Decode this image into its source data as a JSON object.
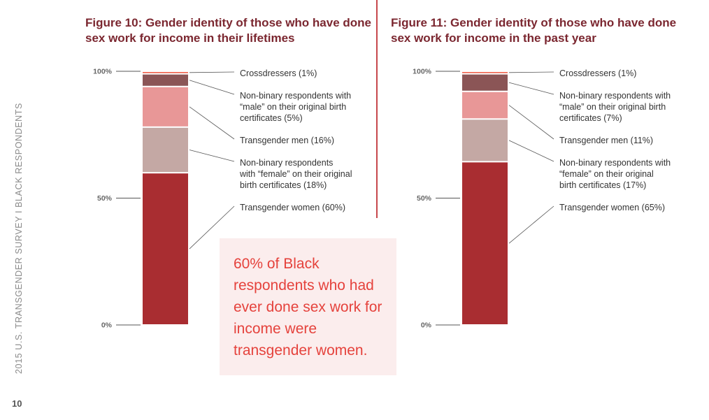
{
  "sidebar_text": "2015 U.S. TRANSGENDER SURVEY I BLACK RESPONDENTS",
  "page_number": "10",
  "callout": "60% of Black respondents who had ever done sex work for income were transgender women.",
  "chart_data": [
    {
      "type": "bar",
      "stacked": true,
      "title": "Figure 10: Gender identity of those who have done sex work for income in their lifetimes",
      "yticks": [
        "0%",
        "50%",
        "100%"
      ],
      "ylim": [
        0,
        100
      ],
      "series": [
        {
          "name": "Transgender women (60%)",
          "value": 60,
          "color": "#a92d31"
        },
        {
          "name": "Non-binary respondents with “female” on their original birth certificates (18%)",
          "value": 18,
          "color": "#c4a8a4"
        },
        {
          "name": "Transgender men (16%)",
          "value": 16,
          "color": "#e89797"
        },
        {
          "name": "Non-binary respondents with “male” on their original birth certificates (5%)",
          "value": 5,
          "color": "#8b5556"
        },
        {
          "name": "Crossdressers (1%)",
          "value": 1,
          "color": "#f0604a"
        }
      ],
      "label_lines": [
        [
          "Transgender women (60%)"
        ],
        [
          "Non-binary respondents",
          "with “female” on their original",
          "birth certificates (18%)"
        ],
        [
          "Transgender men (16%)"
        ],
        [
          "Non-binary respondents with",
          "“male” on their original birth",
          "certificates (5%)"
        ],
        [
          "Crossdressers (1%)"
        ]
      ]
    },
    {
      "type": "bar",
      "stacked": true,
      "title": "Figure 11: Gender identity of those who have done sex work for income in the past year",
      "yticks": [
        "0%",
        "50%",
        "100%"
      ],
      "ylim": [
        0,
        100
      ],
      "series": [
        {
          "name": "Transgender women (65%)",
          "value": 65,
          "color": "#a92d31"
        },
        {
          "name": "Non-binary respondents with “female” on their original birth certificates (17%)",
          "value": 17,
          "color": "#c4a8a4"
        },
        {
          "name": "Transgender men (11%)",
          "value": 11,
          "color": "#e89797"
        },
        {
          "name": "Non-binary respondents with “male” on their original birth certificates (7%)",
          "value": 7,
          "color": "#8b5556"
        },
        {
          "name": "Crossdressers (1%)",
          "value": 1,
          "color": "#f0604a"
        }
      ],
      "label_lines": [
        [
          "Transgender women (65%)"
        ],
        [
          "Non-binary respondents with",
          "“female” on their original",
          "birth certificates (17%)"
        ],
        [
          "Transgender men (11%)"
        ],
        [
          "Non-binary respondents with",
          "“male” on their original birth",
          "certificates (7%)"
        ],
        [
          "Crossdressers (1%)"
        ]
      ]
    }
  ]
}
